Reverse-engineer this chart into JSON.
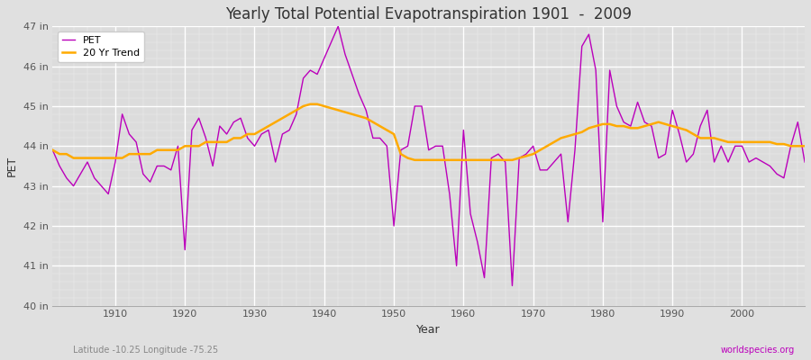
{
  "title": "Yearly Total Potential Evapotranspiration 1901  -  2009",
  "xlabel": "Year",
  "ylabel": "PET",
  "subtitle_left": "Latitude -10.25 Longitude -75.25",
  "subtitle_right": "worldspecies.org",
  "ylim": [
    40,
    47
  ],
  "yticks": [
    40,
    41,
    42,
    43,
    44,
    45,
    46,
    47
  ],
  "ytick_labels": [
    "40 in",
    "41 in",
    "42 in",
    "43 in",
    "44 in",
    "45 in",
    "46 in",
    "47 in"
  ],
  "xlim": [
    1901,
    2009
  ],
  "xticks": [
    1910,
    1920,
    1930,
    1940,
    1950,
    1960,
    1970,
    1980,
    1990,
    2000
  ],
  "pet_color": "#bb00bb",
  "trend_color": "#ffaa00",
  "background_color": "#e0e0e0",
  "plot_bg_color": "#dcdcdc",
  "pet_linewidth": 1.0,
  "trend_linewidth": 1.8,
  "years": [
    1901,
    1902,
    1903,
    1904,
    1905,
    1906,
    1907,
    1908,
    1909,
    1910,
    1911,
    1912,
    1913,
    1914,
    1915,
    1916,
    1917,
    1918,
    1919,
    1920,
    1921,
    1922,
    1923,
    1924,
    1925,
    1926,
    1927,
    1928,
    1929,
    1930,
    1931,
    1932,
    1933,
    1934,
    1935,
    1936,
    1937,
    1938,
    1939,
    1940,
    1941,
    1942,
    1943,
    1944,
    1945,
    1946,
    1947,
    1948,
    1949,
    1950,
    1951,
    1952,
    1953,
    1954,
    1955,
    1956,
    1957,
    1958,
    1959,
    1960,
    1961,
    1962,
    1963,
    1964,
    1965,
    1966,
    1967,
    1968,
    1969,
    1970,
    1971,
    1972,
    1973,
    1974,
    1975,
    1976,
    1977,
    1978,
    1979,
    1980,
    1981,
    1982,
    1983,
    1984,
    1985,
    1986,
    1987,
    1988,
    1989,
    1990,
    1991,
    1992,
    1993,
    1994,
    1995,
    1996,
    1997,
    1998,
    1999,
    2000,
    2001,
    2002,
    2003,
    2004,
    2005,
    2006,
    2007,
    2008,
    2009
  ],
  "pet_values": [
    43.9,
    43.5,
    43.2,
    43.0,
    43.3,
    43.6,
    43.2,
    43.0,
    42.8,
    43.6,
    44.8,
    44.3,
    44.1,
    43.3,
    43.1,
    43.5,
    43.5,
    43.4,
    44.0,
    41.4,
    44.4,
    44.7,
    44.2,
    43.5,
    44.5,
    44.3,
    44.6,
    44.7,
    44.2,
    44.0,
    44.3,
    44.4,
    43.6,
    44.3,
    44.4,
    44.8,
    45.7,
    45.9,
    45.8,
    46.2,
    46.6,
    47.0,
    46.3,
    45.8,
    45.3,
    44.9,
    44.2,
    44.2,
    44.0,
    42.0,
    43.9,
    44.0,
    45.0,
    45.0,
    43.9,
    44.0,
    44.0,
    42.8,
    41.0,
    44.4,
    42.3,
    41.6,
    40.7,
    43.7,
    43.8,
    43.6,
    40.5,
    43.7,
    43.8,
    44.0,
    43.4,
    43.4,
    43.6,
    43.8,
    42.1,
    43.9,
    46.5,
    46.8,
    45.9,
    42.1,
    45.9,
    45.0,
    44.6,
    44.5,
    45.1,
    44.6,
    44.5,
    43.7,
    43.8,
    44.9,
    44.3,
    43.6,
    43.8,
    44.5,
    44.9,
    43.6,
    44.0,
    43.6,
    44.0,
    44.0,
    43.6,
    43.7,
    43.6,
    43.5,
    43.3,
    43.2,
    44.0,
    44.6,
    43.6
  ],
  "trend_values": [
    43.9,
    43.8,
    43.8,
    43.7,
    43.7,
    43.7,
    43.7,
    43.7,
    43.7,
    43.7,
    43.7,
    43.8,
    43.8,
    43.8,
    43.8,
    43.9,
    43.9,
    43.9,
    43.9,
    44.0,
    44.0,
    44.0,
    44.1,
    44.1,
    44.1,
    44.1,
    44.2,
    44.2,
    44.3,
    44.3,
    44.4,
    44.5,
    44.6,
    44.7,
    44.8,
    44.9,
    45.0,
    45.05,
    45.05,
    45.0,
    44.95,
    44.9,
    44.85,
    44.8,
    44.75,
    44.7,
    44.6,
    44.5,
    44.4,
    44.3,
    43.8,
    43.7,
    43.65,
    43.65,
    43.65,
    43.65,
    43.65,
    43.65,
    43.65,
    43.65,
    43.65,
    43.65,
    43.65,
    43.65,
    43.65,
    43.65,
    43.65,
    43.7,
    43.75,
    43.8,
    43.9,
    44.0,
    44.1,
    44.2,
    44.25,
    44.3,
    44.35,
    44.45,
    44.5,
    44.55,
    44.55,
    44.5,
    44.5,
    44.45,
    44.45,
    44.5,
    44.55,
    44.6,
    44.55,
    44.5,
    44.45,
    44.4,
    44.3,
    44.2,
    44.2,
    44.2,
    44.15,
    44.1,
    44.1,
    44.1,
    44.1,
    44.1,
    44.1,
    44.1,
    44.05,
    44.05,
    44.0,
    44.0,
    44.0
  ]
}
